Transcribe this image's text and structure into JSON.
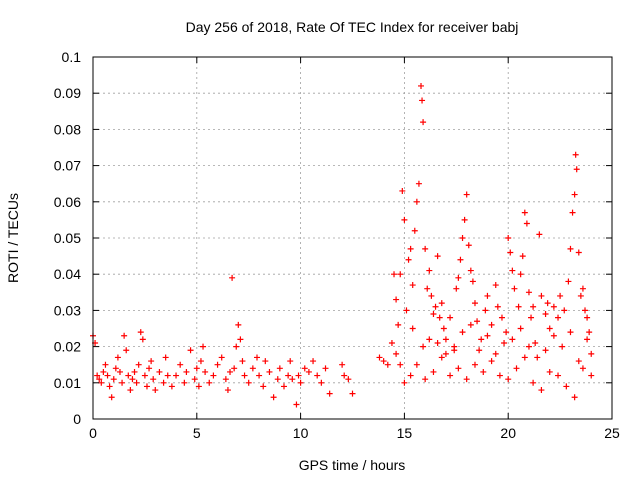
{
  "chart_data": {
    "type": "scatter",
    "title": "Day 256 of 2018, Rate Of TEC Index for receiver babj",
    "xlabel": "GPS time / hours",
    "ylabel": "ROTI / TECUs",
    "xlim": [
      0,
      25
    ],
    "ylim": [
      0,
      0.1
    ],
    "xticks": [
      0,
      5,
      10,
      15,
      20,
      25
    ],
    "xtick_labels": [
      "0",
      "5",
      "10",
      "15",
      "20",
      "25"
    ],
    "yticks": [
      0,
      0.01,
      0.02,
      0.03,
      0.04,
      0.05,
      0.06,
      0.07,
      0.08,
      0.09,
      0.1
    ],
    "ytick_labels": [
      "0",
      "0.01",
      "0.02",
      "0.03",
      "0.04",
      "0.05",
      "0.06",
      "0.07",
      "0.08",
      "0.09",
      "0.1"
    ],
    "grid": true,
    "marker": "plus",
    "color": "#ff0000",
    "series": [
      {
        "points": [
          [
            0.0,
            0.023
          ],
          [
            0.1,
            0.021
          ],
          [
            0.2,
            0.012
          ],
          [
            0.3,
            0.011
          ],
          [
            0.4,
            0.01
          ],
          [
            0.5,
            0.013
          ],
          [
            0.6,
            0.015
          ],
          [
            0.7,
            0.012
          ],
          [
            0.8,
            0.009
          ],
          [
            0.9,
            0.006
          ],
          [
            1.0,
            0.011
          ],
          [
            1.1,
            0.014
          ],
          [
            1.2,
            0.017
          ],
          [
            1.3,
            0.013
          ],
          [
            1.4,
            0.01
          ],
          [
            1.5,
            0.023
          ],
          [
            1.6,
            0.019
          ],
          [
            1.7,
            0.012
          ],
          [
            1.8,
            0.008
          ],
          [
            1.9,
            0.011
          ],
          [
            2.0,
            0.013
          ],
          [
            2.1,
            0.01
          ],
          [
            2.2,
            0.015
          ],
          [
            2.3,
            0.024
          ],
          [
            2.4,
            0.022
          ],
          [
            2.5,
            0.012
          ],
          [
            2.6,
            0.009
          ],
          [
            2.7,
            0.014
          ],
          [
            2.8,
            0.016
          ],
          [
            2.9,
            0.011
          ],
          [
            3.0,
            0.008
          ],
          [
            3.2,
            0.013
          ],
          [
            3.4,
            0.01
          ],
          [
            3.5,
            0.017
          ],
          [
            3.6,
            0.012
          ],
          [
            3.8,
            0.009
          ],
          [
            4.0,
            0.012
          ],
          [
            4.2,
            0.015
          ],
          [
            4.4,
            0.01
          ],
          [
            4.5,
            0.013
          ],
          [
            4.7,
            0.019
          ],
          [
            4.9,
            0.011
          ],
          [
            5.0,
            0.014
          ],
          [
            5.1,
            0.009
          ],
          [
            5.2,
            0.016
          ],
          [
            5.3,
            0.02
          ],
          [
            5.4,
            0.013
          ],
          [
            5.6,
            0.01
          ],
          [
            5.8,
            0.012
          ],
          [
            6.0,
            0.015
          ],
          [
            6.2,
            0.017
          ],
          [
            6.4,
            0.011
          ],
          [
            6.5,
            0.008
          ],
          [
            6.6,
            0.013
          ],
          [
            6.7,
            0.039
          ],
          [
            6.8,
            0.014
          ],
          [
            6.9,
            0.02
          ],
          [
            7.0,
            0.026
          ],
          [
            7.1,
            0.022
          ],
          [
            7.2,
            0.016
          ],
          [
            7.3,
            0.012
          ],
          [
            7.5,
            0.01
          ],
          [
            7.7,
            0.014
          ],
          [
            7.9,
            0.017
          ],
          [
            8.0,
            0.012
          ],
          [
            8.2,
            0.009
          ],
          [
            8.3,
            0.016
          ],
          [
            8.5,
            0.013
          ],
          [
            8.7,
            0.006
          ],
          [
            8.9,
            0.011
          ],
          [
            9.0,
            0.014
          ],
          [
            9.2,
            0.009
          ],
          [
            9.4,
            0.012
          ],
          [
            9.5,
            0.016
          ],
          [
            9.6,
            0.011
          ],
          [
            9.8,
            0.004
          ],
          [
            9.9,
            0.012
          ],
          [
            10.0,
            0.01
          ],
          [
            10.2,
            0.014
          ],
          [
            10.4,
            0.013
          ],
          [
            10.6,
            0.016
          ],
          [
            10.8,
            0.012
          ],
          [
            11.0,
            0.01
          ],
          [
            11.2,
            0.014
          ],
          [
            11.4,
            0.007
          ],
          [
            12.0,
            0.015
          ],
          [
            12.1,
            0.012
          ],
          [
            12.3,
            0.011
          ],
          [
            12.5,
            0.007
          ],
          [
            13.8,
            0.017
          ],
          [
            14.0,
            0.016
          ],
          [
            14.2,
            0.015
          ],
          [
            14.4,
            0.021
          ],
          [
            14.5,
            0.04
          ],
          [
            14.6,
            0.033
          ],
          [
            14.7,
            0.026
          ],
          [
            14.8,
            0.04
          ],
          [
            14.9,
            0.063
          ],
          [
            15.0,
            0.055
          ],
          [
            15.1,
            0.03
          ],
          [
            15.2,
            0.044
          ],
          [
            15.3,
            0.047
          ],
          [
            15.4,
            0.037
          ],
          [
            15.5,
            0.052
          ],
          [
            15.6,
            0.06
          ],
          [
            15.7,
            0.065
          ],
          [
            15.8,
            0.092
          ],
          [
            15.85,
            0.088
          ],
          [
            15.9,
            0.082
          ],
          [
            16.0,
            0.047
          ],
          [
            16.1,
            0.036
          ],
          [
            16.2,
            0.041
          ],
          [
            16.3,
            0.034
          ],
          [
            16.4,
            0.029
          ],
          [
            16.5,
            0.031
          ],
          [
            16.6,
            0.045
          ],
          [
            16.7,
            0.028
          ],
          [
            16.8,
            0.032
          ],
          [
            16.9,
            0.025
          ],
          [
            17.0,
            0.022
          ],
          [
            17.2,
            0.028
          ],
          [
            17.4,
            0.02
          ],
          [
            17.5,
            0.036
          ],
          [
            17.6,
            0.039
          ],
          [
            17.7,
            0.044
          ],
          [
            17.8,
            0.05
          ],
          [
            17.9,
            0.055
          ],
          [
            18.0,
            0.062
          ],
          [
            18.1,
            0.048
          ],
          [
            18.2,
            0.041
          ],
          [
            18.3,
            0.038
          ],
          [
            18.4,
            0.032
          ],
          [
            18.5,
            0.027
          ],
          [
            18.7,
            0.022
          ],
          [
            18.9,
            0.03
          ],
          [
            19.0,
            0.034
          ],
          [
            19.2,
            0.026
          ],
          [
            19.4,
            0.037
          ],
          [
            19.5,
            0.031
          ],
          [
            19.7,
            0.028
          ],
          [
            19.9,
            0.024
          ],
          [
            20.0,
            0.05
          ],
          [
            20.1,
            0.046
          ],
          [
            20.2,
            0.041
          ],
          [
            20.3,
            0.036
          ],
          [
            20.5,
            0.031
          ],
          [
            20.6,
            0.04
          ],
          [
            20.7,
            0.045
          ],
          [
            20.8,
            0.057
          ],
          [
            20.9,
            0.054
          ],
          [
            21.0,
            0.035
          ],
          [
            21.1,
            0.028
          ],
          [
            21.2,
            0.031
          ],
          [
            21.3,
            0.021
          ],
          [
            21.5,
            0.051
          ],
          [
            21.6,
            0.034
          ],
          [
            21.8,
            0.029
          ],
          [
            21.9,
            0.032
          ],
          [
            22.0,
            0.025
          ],
          [
            22.2,
            0.031
          ],
          [
            22.4,
            0.028
          ],
          [
            22.5,
            0.034
          ],
          [
            22.7,
            0.03
          ],
          [
            22.9,
            0.038
          ],
          [
            23.0,
            0.047
          ],
          [
            23.1,
            0.057
          ],
          [
            23.2,
            0.062
          ],
          [
            23.25,
            0.073
          ],
          [
            23.3,
            0.069
          ],
          [
            23.4,
            0.046
          ],
          [
            23.5,
            0.034
          ],
          [
            23.6,
            0.036
          ],
          [
            23.7,
            0.03
          ],
          [
            23.8,
            0.028
          ],
          [
            23.9,
            0.024
          ],
          [
            24.0,
            0.018
          ],
          [
            15.0,
            0.01
          ],
          [
            15.3,
            0.012
          ],
          [
            15.6,
            0.015
          ],
          [
            16.0,
            0.011
          ],
          [
            16.4,
            0.013
          ],
          [
            16.8,
            0.017
          ],
          [
            17.2,
            0.012
          ],
          [
            17.6,
            0.014
          ],
          [
            18.0,
            0.011
          ],
          [
            18.4,
            0.015
          ],
          [
            18.8,
            0.013
          ],
          [
            19.2,
            0.016
          ],
          [
            19.6,
            0.012
          ],
          [
            20.0,
            0.011
          ],
          [
            20.4,
            0.014
          ],
          [
            20.8,
            0.017
          ],
          [
            21.2,
            0.01
          ],
          [
            21.6,
            0.008
          ],
          [
            22.0,
            0.013
          ],
          [
            22.4,
            0.012
          ],
          [
            22.8,
            0.009
          ],
          [
            23.2,
            0.006
          ],
          [
            23.6,
            0.014
          ],
          [
            24.0,
            0.012
          ],
          [
            14.8,
            0.015
          ],
          [
            15.9,
            0.02
          ],
          [
            17.0,
            0.018
          ],
          [
            18.6,
            0.019
          ],
          [
            19.8,
            0.021
          ],
          [
            21.4,
            0.017
          ],
          [
            22.6,
            0.02
          ],
          [
            23.4,
            0.016
          ],
          [
            16.2,
            0.022
          ],
          [
            17.8,
            0.024
          ],
          [
            19.0,
            0.023
          ],
          [
            20.2,
            0.022
          ],
          [
            21.8,
            0.019
          ],
          [
            23.0,
            0.024
          ],
          [
            14.6,
            0.018
          ],
          [
            15.4,
            0.025
          ],
          [
            16.6,
            0.021
          ],
          [
            17.4,
            0.019
          ],
          [
            18.2,
            0.026
          ],
          [
            19.4,
            0.018
          ],
          [
            20.6,
            0.025
          ],
          [
            21.0,
            0.02
          ],
          [
            22.2,
            0.023
          ],
          [
            23.8,
            0.022
          ]
        ]
      }
    ]
  }
}
